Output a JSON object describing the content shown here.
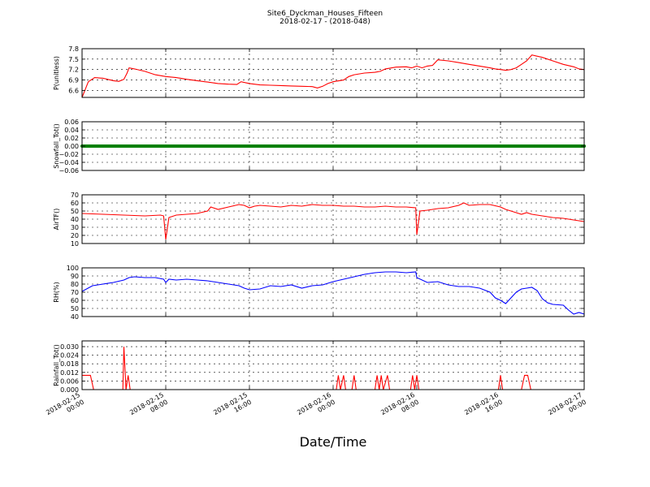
{
  "header": {
    "title": "Site6_Dyckman_Houses_Fifteen",
    "subtitle": "2018-02-17 - (2018-048)"
  },
  "xlabel": "Date/Time",
  "x_ticks": [
    {
      "t": 0,
      "l1": "2018-02-15",
      "l2": "00:00"
    },
    {
      "t": 8,
      "l1": "2018-02-15",
      "l2": "08:00"
    },
    {
      "t": 16,
      "l1": "2018-02-15",
      "l2": "16:00"
    },
    {
      "t": 24,
      "l1": "2018-02-16",
      "l2": "00:00"
    },
    {
      "t": 32,
      "l1": "2018-02-16",
      "l2": "08:00"
    },
    {
      "t": 40,
      "l1": "2018-02-16",
      "l2": "16:00"
    },
    {
      "t": 48,
      "l1": "2018-02-17",
      "l2": "00:00"
    }
  ],
  "chart_data": [
    {
      "type": "line",
      "ylabel": "P(unitless)",
      "ylim": [
        6.4,
        7.8
      ],
      "yticks": [
        "6.6",
        "6.9",
        "7.2",
        "7.5",
        "7.8"
      ],
      "ytick_values": [
        6.6,
        6.9,
        7.2,
        7.5,
        7.8
      ],
      "color": "#ff0000",
      "grid": true,
      "points": [
        [
          0,
          6.4
        ],
        [
          0.6,
          6.85
        ],
        [
          1.2,
          6.97
        ],
        [
          2,
          6.95
        ],
        [
          3,
          6.88
        ],
        [
          3.5,
          6.86
        ],
        [
          4,
          6.92
        ],
        [
          4.3,
          7.1
        ],
        [
          4.5,
          7.25
        ],
        [
          5,
          7.22
        ],
        [
          6,
          7.15
        ],
        [
          7,
          7.05
        ],
        [
          8,
          7.0
        ],
        [
          9,
          6.97
        ],
        [
          10,
          6.92
        ],
        [
          11,
          6.88
        ],
        [
          12,
          6.84
        ],
        [
          13,
          6.8
        ],
        [
          14,
          6.78
        ],
        [
          14.8,
          6.77
        ],
        [
          15.2,
          6.85
        ],
        [
          16,
          6.8
        ],
        [
          17,
          6.76
        ],
        [
          18,
          6.75
        ],
        [
          19,
          6.74
        ],
        [
          20,
          6.73
        ],
        [
          21,
          6.72
        ],
        [
          22,
          6.71
        ],
        [
          22.5,
          6.67
        ],
        [
          23,
          6.72
        ],
        [
          23.5,
          6.8
        ],
        [
          24,
          6.85
        ],
        [
          25,
          6.9
        ],
        [
          25.5,
          7.0
        ],
        [
          26,
          7.05
        ],
        [
          27,
          7.1
        ],
        [
          28,
          7.12
        ],
        [
          28.5,
          7.15
        ],
        [
          29,
          7.22
        ],
        [
          30,
          7.27
        ],
        [
          31,
          7.28
        ],
        [
          31.5,
          7.25
        ],
        [
          32,
          7.3
        ],
        [
          32.5,
          7.25
        ],
        [
          33,
          7.3
        ],
        [
          33.5,
          7.32
        ],
        [
          34,
          7.48
        ],
        [
          35,
          7.45
        ],
        [
          36,
          7.4
        ],
        [
          37,
          7.35
        ],
        [
          38,
          7.3
        ],
        [
          39,
          7.25
        ],
        [
          39.5,
          7.22
        ],
        [
          40,
          7.2
        ],
        [
          40.5,
          7.18
        ],
        [
          41,
          7.2
        ],
        [
          41.5,
          7.25
        ],
        [
          42,
          7.35
        ],
        [
          42.5,
          7.45
        ],
        [
          43,
          7.62
        ],
        [
          44,
          7.55
        ],
        [
          45,
          7.45
        ],
        [
          46,
          7.35
        ],
        [
          47,
          7.28
        ],
        [
          47.5,
          7.22
        ],
        [
          48,
          7.2
        ]
      ]
    },
    {
      "type": "scatter",
      "ylabel": "Snowfall_Tot()",
      "ylim": [
        -0.06,
        0.06
      ],
      "yticks": [
        "−0.06",
        "−0.04",
        "−0.02",
        "0.00",
        "0.02",
        "0.04",
        "0.06"
      ],
      "ytick_values": [
        -0.06,
        -0.04,
        -0.02,
        0.0,
        0.02,
        0.04,
        0.06
      ],
      "color": "#008000",
      "grid": true,
      "constant_value": 0.0
    },
    {
      "type": "line",
      "ylabel": "AirTF()",
      "ylim": [
        10,
        70
      ],
      "yticks": [
        "10",
        "20",
        "30",
        "40",
        "50",
        "60",
        "70"
      ],
      "ytick_values": [
        10,
        20,
        30,
        40,
        50,
        60,
        70
      ],
      "color": "#ff0000",
      "grid": true,
      "points": [
        [
          0,
          47
        ],
        [
          2,
          46
        ],
        [
          4,
          45
        ],
        [
          6,
          44
        ],
        [
          7.5,
          45
        ],
        [
          7.8,
          44
        ],
        [
          8,
          15
        ],
        [
          8.3,
          42
        ],
        [
          9,
          45
        ],
        [
          10,
          46
        ],
        [
          11,
          47
        ],
        [
          12,
          50
        ],
        [
          12.3,
          55
        ],
        [
          13,
          52
        ],
        [
          14,
          55
        ],
        [
          15,
          58
        ],
        [
          15.5,
          57
        ],
        [
          16,
          54
        ],
        [
          16.5,
          56
        ],
        [
          17,
          57
        ],
        [
          18,
          56
        ],
        [
          19,
          55
        ],
        [
          20,
          57
        ],
        [
          21,
          56
        ],
        [
          22,
          58
        ],
        [
          23,
          57
        ],
        [
          24,
          57
        ],
        [
          25,
          56
        ],
        [
          26,
          56
        ],
        [
          27,
          55
        ],
        [
          28,
          55
        ],
        [
          29,
          56
        ],
        [
          30,
          55
        ],
        [
          31,
          55
        ],
        [
          31.9,
          54
        ],
        [
          32,
          21
        ],
        [
          32.3,
          50
        ],
        [
          33,
          51
        ],
        [
          34,
          53
        ],
        [
          35,
          54
        ],
        [
          36,
          57
        ],
        [
          36.5,
          60
        ],
        [
          37,
          57
        ],
        [
          38,
          58
        ],
        [
          39,
          58
        ],
        [
          40,
          55
        ],
        [
          40.5,
          52
        ],
        [
          41,
          50
        ],
        [
          41.5,
          48
        ],
        [
          42,
          46
        ],
        [
          42.5,
          48
        ],
        [
          43,
          46
        ],
        [
          44,
          44
        ],
        [
          45,
          42
        ],
        [
          46,
          41
        ],
        [
          47,
          39
        ],
        [
          48,
          37
        ]
      ]
    },
    {
      "type": "line",
      "ylabel": "RH(%)",
      "ylim": [
        40,
        100
      ],
      "yticks": [
        "40",
        "50",
        "60",
        "70",
        "80",
        "90",
        "100"
      ],
      "ytick_values": [
        40,
        50,
        60,
        70,
        80,
        90,
        100
      ],
      "color": "#0000ff",
      "grid": true,
      "points": [
        [
          0,
          71
        ],
        [
          1,
          78
        ],
        [
          2,
          80
        ],
        [
          3,
          82
        ],
        [
          4,
          85
        ],
        [
          4.5,
          88
        ],
        [
          5,
          89
        ],
        [
          6,
          88
        ],
        [
          7,
          88
        ],
        [
          7.8,
          86
        ],
        [
          8,
          82
        ],
        [
          8.3,
          86
        ],
        [
          9,
          85
        ],
        [
          10,
          86
        ],
        [
          11,
          85
        ],
        [
          12,
          84
        ],
        [
          13,
          82
        ],
        [
          14,
          80
        ],
        [
          15,
          78
        ],
        [
          15.5,
          75
        ],
        [
          16,
          73
        ],
        [
          17,
          74
        ],
        [
          18,
          78
        ],
        [
          19,
          77
        ],
        [
          20,
          79
        ],
        [
          21,
          75
        ],
        [
          22,
          78
        ],
        [
          23,
          79
        ],
        [
          24,
          83
        ],
        [
          25,
          86
        ],
        [
          26,
          89
        ],
        [
          27,
          92
        ],
        [
          28,
          94
        ],
        [
          29,
          95
        ],
        [
          30,
          95
        ],
        [
          31,
          94
        ],
        [
          31.9,
          95
        ],
        [
          32,
          88
        ],
        [
          33,
          82
        ],
        [
          34,
          83
        ],
        [
          35,
          79
        ],
        [
          36,
          77
        ],
        [
          37,
          77
        ],
        [
          38,
          75
        ],
        [
          39,
          70
        ],
        [
          39.5,
          63
        ],
        [
          40,
          60
        ],
        [
          40.5,
          56
        ],
        [
          41,
          63
        ],
        [
          41.5,
          70
        ],
        [
          42,
          74
        ],
        [
          42.5,
          75
        ],
        [
          43,
          76
        ],
        [
          43.5,
          72
        ],
        [
          44,
          62
        ],
        [
          44.5,
          57
        ],
        [
          45,
          55
        ],
        [
          46,
          54
        ],
        [
          46.5,
          48
        ],
        [
          47,
          43
        ],
        [
          47.5,
          45
        ],
        [
          48,
          43
        ]
      ]
    },
    {
      "type": "line",
      "ylabel": "Rainfall_Tot()",
      "ylim": [
        0,
        0.034
      ],
      "yticks": [
        "0.000",
        "0.006",
        "0.012",
        "0.018",
        "0.024",
        "0.030"
      ],
      "ytick_values": [
        0.0,
        0.006,
        0.012,
        0.018,
        0.024,
        0.03
      ],
      "color": "#ff0000",
      "grid": true,
      "points": [
        [
          0,
          0.01
        ],
        [
          0.8,
          0.01
        ],
        [
          1.1,
          0
        ],
        [
          3.9,
          0
        ],
        [
          4,
          0.03
        ],
        [
          4.2,
          0
        ],
        [
          4.4,
          0.01
        ],
        [
          4.6,
          0
        ],
        [
          24.3,
          0
        ],
        [
          24.5,
          0.01
        ],
        [
          24.7,
          0
        ],
        [
          25,
          0.01
        ],
        [
          25.2,
          0
        ],
        [
          25.8,
          0
        ],
        [
          26,
          0.01
        ],
        [
          26.2,
          0
        ],
        [
          28,
          0
        ],
        [
          28.2,
          0.01
        ],
        [
          28.4,
          0
        ],
        [
          28.6,
          0.01
        ],
        [
          28.8,
          0
        ],
        [
          29.2,
          0.01
        ],
        [
          29.4,
          0
        ],
        [
          31.4,
          0
        ],
        [
          31.6,
          0.01
        ],
        [
          31.8,
          0
        ],
        [
          32,
          0.01
        ],
        [
          32.2,
          0
        ],
        [
          39.8,
          0
        ],
        [
          40,
          0.01
        ],
        [
          40.2,
          0
        ],
        [
          42,
          0
        ],
        [
          42.3,
          0.01
        ],
        [
          42.6,
          0.01
        ],
        [
          42.9,
          0
        ],
        [
          48,
          0
        ]
      ]
    }
  ]
}
